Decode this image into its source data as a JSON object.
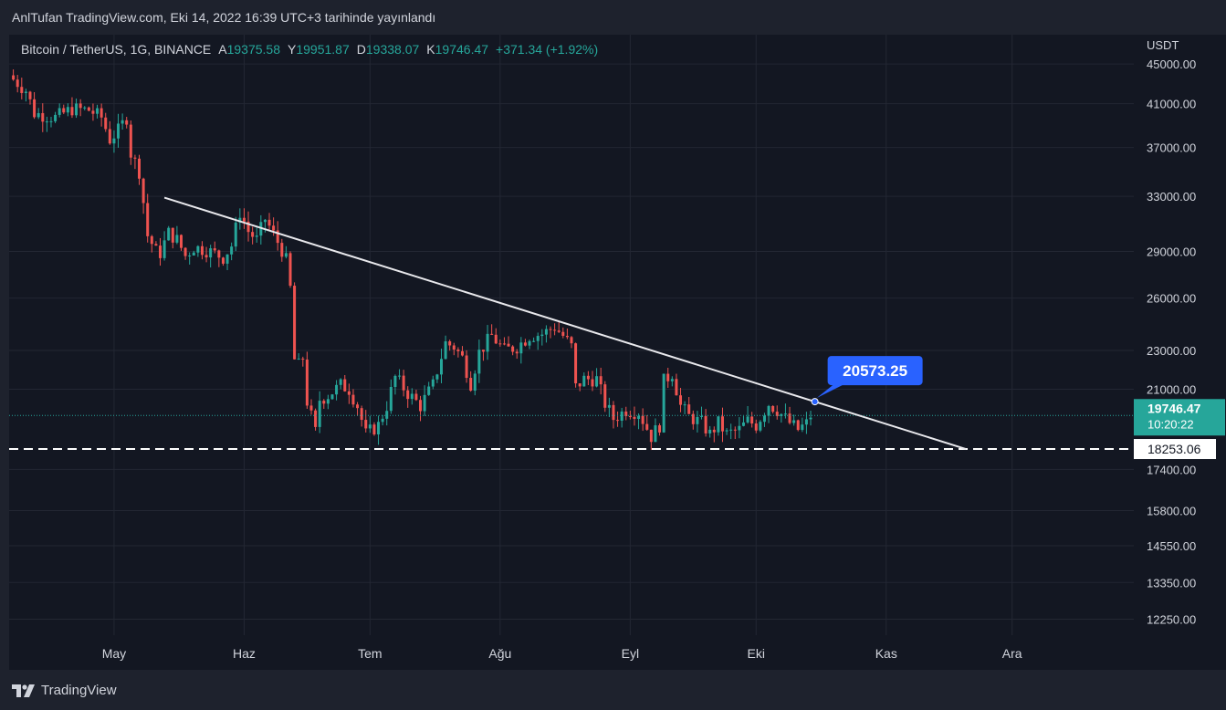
{
  "header": {
    "publish_text": "AnlTufan TradingView.com, Eki 14, 2022 16:39 UTC+3 tarihinde yayınlandı"
  },
  "legend": {
    "symbol": "Bitcoin / TetherUS, 1G, BINANCE",
    "open_label": "A",
    "open": "19375.58",
    "high_label": "Y",
    "high": "19951.87",
    "low_label": "D",
    "low": "19338.07",
    "close_label": "K",
    "close": "19746.47",
    "change": "+371.34 (+1.92%)"
  },
  "footer": {
    "brand": "TradingView"
  },
  "colors": {
    "up": "#26a69a",
    "down": "#ef5350",
    "grid": "#232733",
    "bg": "#131722",
    "callout": "#2962ff"
  },
  "chart_data": {
    "type": "candlestick",
    "title": "Bitcoin / TetherUS, 1G, BINANCE",
    "y_unit": "USDT",
    "y_scale": "log",
    "ylim": [
      11800,
      48200
    ],
    "y_ticks": [
      45000,
      41000,
      37000,
      33000,
      29000,
      26000,
      23000,
      21000,
      17400,
      15800,
      14550,
      13350,
      12250
    ],
    "y_tick_labels": [
      "45000.00",
      "41000.00",
      "37000.00",
      "33000.00",
      "29000.00",
      "26000.00",
      "23000.00",
      "21000.00",
      "17400.00",
      "15800.00",
      "14550.00",
      "13350.00",
      "12250.00"
    ],
    "x_range": [
      "2022-04-06",
      "2022-12-30"
    ],
    "x_ticks": [
      {
        "date": "2022-05-01",
        "label": "May"
      },
      {
        "date": "2022-06-01",
        "label": "Haz"
      },
      {
        "date": "2022-07-01",
        "label": "Tem"
      },
      {
        "date": "2022-08-01",
        "label": "Ağu"
      },
      {
        "date": "2022-09-01",
        "label": "Eyl"
      },
      {
        "date": "2022-10-01",
        "label": "Eki"
      },
      {
        "date": "2022-11-01",
        "label": "Kas"
      },
      {
        "date": "2022-12-01",
        "label": "Ara"
      }
    ],
    "close_path": [
      [
        "2022-04-07",
        43400
      ],
      [
        "2022-04-10",
        42300
      ],
      [
        "2022-04-12",
        40100
      ],
      [
        "2022-04-17",
        39700
      ],
      [
        "2022-04-21",
        40500
      ],
      [
        "2022-04-25",
        40400
      ],
      [
        "2022-04-28",
        39700
      ],
      [
        "2022-04-30",
        37700
      ],
      [
        "2022-05-02",
        38500
      ],
      [
        "2022-05-04",
        39700
      ],
      [
        "2022-05-05",
        36500
      ],
      [
        "2022-05-07",
        35000
      ],
      [
        "2022-05-09",
        30100
      ],
      [
        "2022-05-11",
        29000
      ],
      [
        "2022-05-12",
        28900
      ],
      [
        "2022-05-14",
        30300
      ],
      [
        "2022-05-16",
        29800
      ],
      [
        "2022-05-18",
        28700
      ],
      [
        "2022-05-20",
        29300
      ],
      [
        "2022-05-23",
        29100
      ],
      [
        "2022-05-27",
        28600
      ],
      [
        "2022-05-29",
        29400
      ],
      [
        "2022-05-31",
        31800
      ],
      [
        "2022-06-02",
        30400
      ],
      [
        "2022-06-04",
        29800
      ],
      [
        "2022-06-06",
        31300
      ],
      [
        "2022-06-08",
        30200
      ],
      [
        "2022-06-10",
        29100
      ],
      [
        "2022-06-11",
        28400
      ],
      [
        "2022-06-12",
        26600
      ],
      [
        "2022-06-13",
        22500
      ],
      [
        "2022-06-14",
        22200
      ],
      [
        "2022-06-15",
        22600
      ],
      [
        "2022-06-16",
        20400
      ],
      [
        "2022-06-18",
        19000
      ],
      [
        "2022-06-19",
        20500
      ],
      [
        "2022-06-21",
        20700
      ],
      [
        "2022-06-24",
        21200
      ],
      [
        "2022-06-26",
        21000
      ],
      [
        "2022-06-28",
        20200
      ],
      [
        "2022-06-30",
        18900
      ],
      [
        "2022-07-03",
        19300
      ],
      [
        "2022-07-05",
        20200
      ],
      [
        "2022-07-07",
        21600
      ],
      [
        "2022-07-10",
        20800
      ],
      [
        "2022-07-13",
        20200
      ],
      [
        "2022-07-16",
        21200
      ],
      [
        "2022-07-19",
        23400
      ],
      [
        "2022-07-21",
        23200
      ],
      [
        "2022-07-23",
        22600
      ],
      [
        "2022-07-25",
        21300
      ],
      [
        "2022-07-27",
        22900
      ],
      [
        "2022-07-30",
        23800
      ],
      [
        "2022-08-02",
        23000
      ],
      [
        "2022-08-05",
        23200
      ],
      [
        "2022-08-08",
        23800
      ],
      [
        "2022-08-11",
        23900
      ],
      [
        "2022-08-14",
        24300
      ],
      [
        "2022-08-16",
        23800
      ],
      [
        "2022-08-18",
        23200
      ],
      [
        "2022-08-19",
        21100
      ],
      [
        "2022-08-21",
        21500
      ],
      [
        "2022-08-24",
        21500
      ],
      [
        "2022-08-26",
        20300
      ],
      [
        "2022-08-28",
        19600
      ],
      [
        "2022-08-31",
        20000
      ],
      [
        "2022-09-03",
        19900
      ],
      [
        "2022-09-06",
        18800
      ],
      [
        "2022-09-08",
        19300
      ],
      [
        "2022-09-09",
        21400
      ],
      [
        "2022-09-11",
        21800
      ],
      [
        "2022-09-13",
        20200
      ],
      [
        "2022-09-15",
        19700
      ],
      [
        "2022-09-18",
        19400
      ],
      [
        "2022-09-20",
        18900
      ],
      [
        "2022-09-22",
        19400
      ],
      [
        "2022-09-24",
        18900
      ],
      [
        "2022-09-27",
        19100
      ],
      [
        "2022-09-29",
        19500
      ],
      [
        "2022-10-01",
        19300
      ],
      [
        "2022-10-04",
        20300
      ],
      [
        "2022-10-06",
        20000
      ],
      [
        "2022-10-09",
        19400
      ],
      [
        "2022-10-11",
        19100
      ],
      [
        "2022-10-13",
        19375
      ],
      [
        "2022-10-14",
        19746
      ]
    ],
    "support_line": {
      "value": 18253.06,
      "label": "18253.06",
      "style": "dashed"
    },
    "trend_line": {
      "from": [
        "2022-05-13",
        32900
      ],
      "to": [
        "2022-11-20",
        18253.06
      ],
      "label": "20573.25"
    },
    "last_price": {
      "value": 19746.47,
      "label": "19746.47",
      "countdown": "10:20:22"
    }
  }
}
